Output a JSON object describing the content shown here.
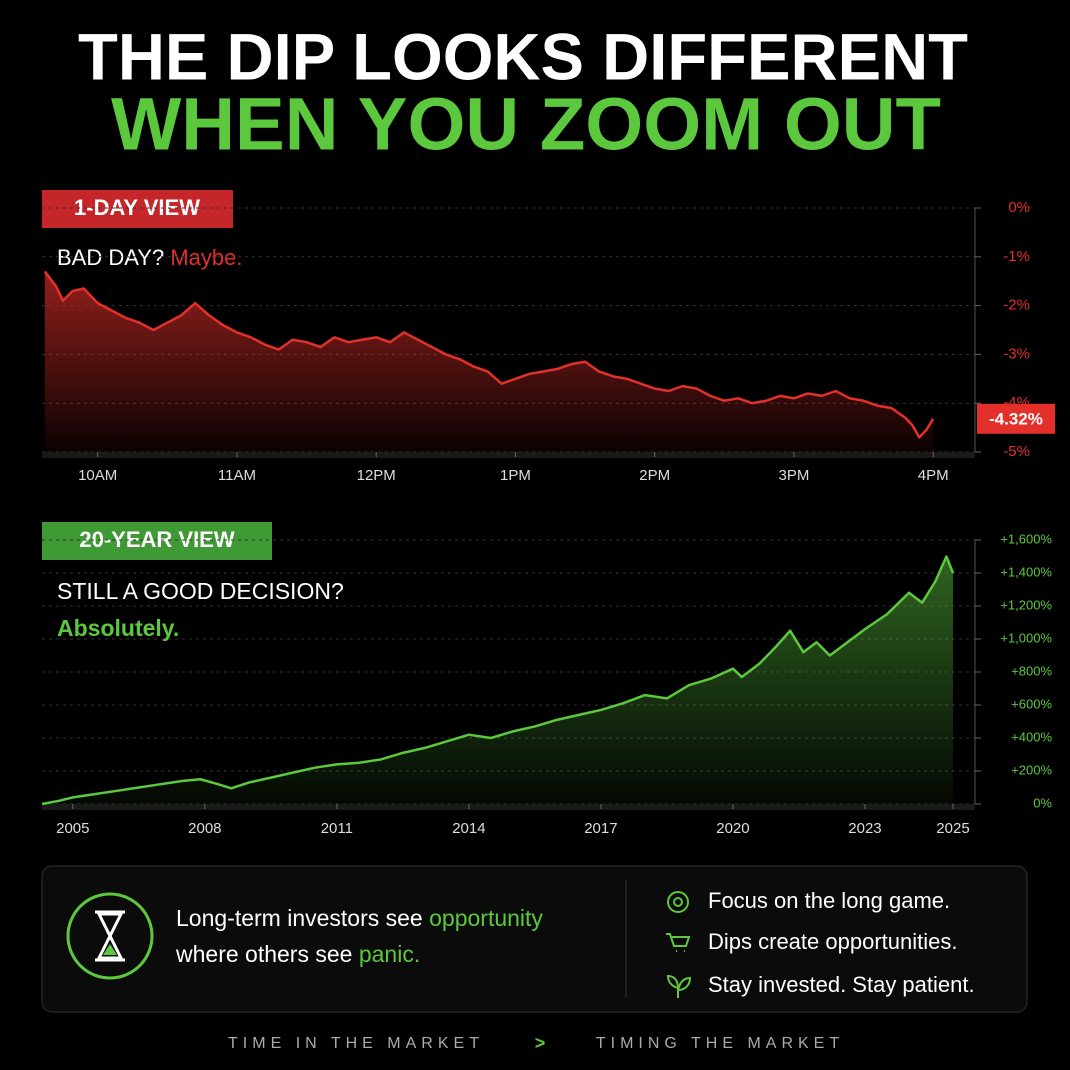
{
  "header": {
    "line1": "THE DIP LOOKS DIFFERENT",
    "line2": "WHEN YOU ZOOM OUT"
  },
  "chart_data": [
    {
      "type": "line",
      "tag": "1-DAY VIEW",
      "title": "BAD DAY?",
      "subtitle": "Maybe.",
      "x": [
        9.62,
        9.7,
        9.75,
        9.82,
        9.9,
        10.0,
        10.1,
        10.2,
        10.3,
        10.4,
        10.5,
        10.6,
        10.7,
        10.8,
        10.9,
        11.0,
        11.1,
        11.2,
        11.3,
        11.4,
        11.5,
        11.6,
        11.7,
        11.8,
        11.9,
        12.0,
        12.1,
        12.2,
        12.3,
        12.4,
        12.5,
        12.6,
        12.7,
        12.8,
        12.9,
        13.0,
        13.1,
        13.2,
        13.3,
        13.4,
        13.5,
        13.6,
        13.7,
        13.8,
        13.9,
        14.0,
        14.1,
        14.2,
        14.3,
        14.4,
        14.5,
        14.6,
        14.7,
        14.8,
        14.9,
        15.0,
        15.1,
        15.2,
        15.3,
        15.4,
        15.5,
        15.6,
        15.7,
        15.8,
        15.85,
        15.9,
        15.95,
        16.0
      ],
      "series": [
        {
          "color": "#e3302b",
          "values": [
            -1.3,
            -1.6,
            -1.9,
            -1.7,
            -1.65,
            -1.95,
            -2.1,
            -2.25,
            -2.35,
            -2.5,
            -2.35,
            -2.2,
            -1.95,
            -2.2,
            -2.4,
            -2.55,
            -2.65,
            -2.8,
            -2.9,
            -2.7,
            -2.75,
            -2.85,
            -2.65,
            -2.75,
            -2.7,
            -2.65,
            -2.75,
            -2.55,
            -2.7,
            -2.85,
            -3.0,
            -3.1,
            -3.25,
            -3.35,
            -3.6,
            -3.5,
            -3.4,
            -3.35,
            -3.3,
            -3.2,
            -3.15,
            -3.35,
            -3.45,
            -3.5,
            -3.6,
            -3.7,
            -3.75,
            -3.65,
            -3.7,
            -3.85,
            -3.95,
            -3.9,
            -4.0,
            -3.95,
            -3.85,
            -3.9,
            -3.8,
            -3.85,
            -3.75,
            -3.9,
            -3.95,
            -4.05,
            -4.1,
            -4.3,
            -4.45,
            -4.7,
            -4.55,
            -4.32
          ]
        }
      ],
      "xlim": [
        9.6,
        16.3
      ],
      "xticks": [
        {
          "value": 10,
          "label": "10AM"
        },
        {
          "value": 11,
          "label": "11AM"
        },
        {
          "value": 12,
          "label": "12PM"
        },
        {
          "value": 13,
          "label": "1PM"
        },
        {
          "value": 14,
          "label": "2PM"
        },
        {
          "value": 15,
          "label": "3PM"
        },
        {
          "value": 16,
          "label": "4PM"
        }
      ],
      "ylim": [
        -5,
        0
      ],
      "yticks": [
        {
          "value": 0,
          "label": "0%"
        },
        {
          "value": -1,
          "label": "-1%"
        },
        {
          "value": -2,
          "label": "-2%"
        },
        {
          "value": -3,
          "label": "-3%"
        },
        {
          "value": -4,
          "label": "-4%"
        },
        {
          "value": -5,
          "label": "-5%"
        }
      ],
      "annotation": "-4.32%",
      "grid": true
    },
    {
      "type": "line",
      "tag": "20-YEAR VIEW",
      "title": "STILL A GOOD DECISION?",
      "subtitle": "Absolutely.",
      "x": [
        2004.3,
        2004.7,
        2005,
        2005.5,
        2006,
        2006.5,
        2007,
        2007.5,
        2007.9,
        2008.3,
        2008.6,
        2009,
        2009.5,
        2010,
        2010.5,
        2011,
        2011.5,
        2012,
        2012.5,
        2013,
        2013.5,
        2014,
        2014.5,
        2015,
        2015.5,
        2016,
        2016.5,
        2017,
        2017.5,
        2018,
        2018.5,
        2019,
        2019.5,
        2020,
        2020.2,
        2020.6,
        2021,
        2021.3,
        2021.6,
        2021.9,
        2022.2,
        2022.5,
        2023,
        2023.5,
        2024,
        2024.3,
        2024.6,
        2024.85,
        2025
      ],
      "series": [
        {
          "color": "#5cc83e",
          "values": [
            0,
            20,
            40,
            60,
            80,
            100,
            120,
            140,
            150,
            120,
            95,
            130,
            160,
            190,
            220,
            240,
            250,
            270,
            310,
            340,
            380,
            420,
            400,
            440,
            470,
            510,
            540,
            570,
            610,
            660,
            640,
            720,
            760,
            820,
            770,
            850,
            960,
            1050,
            920,
            980,
            900,
            960,
            1060,
            1150,
            1280,
            1220,
            1350,
            1500,
            1400
          ]
        }
      ],
      "xlim": [
        2004.3,
        2025.5
      ],
      "xticks": [
        2005,
        2008,
        2011,
        2014,
        2017,
        2020,
        2023,
        2025
      ],
      "ylim": [
        0,
        1600
      ],
      "yticks": [
        {
          "value": 0,
          "label": "0%"
        },
        {
          "value": 200,
          "label": "+200%"
        },
        {
          "value": 400,
          "label": "+400%"
        },
        {
          "value": 600,
          "label": "+600%"
        },
        {
          "value": 800,
          "label": "+800%"
        },
        {
          "value": 1000,
          "label": "+1,000%"
        },
        {
          "value": 1200,
          "label": "+1,200%"
        },
        {
          "value": 1400,
          "label": "+1,400%"
        },
        {
          "value": 1600,
          "label": "+1,600%"
        }
      ],
      "grid": true
    }
  ],
  "panel": {
    "message": [
      "Long-term investors see ",
      "opportunity",
      "where others see ",
      "panic."
    ],
    "bullets": [
      "Focus on the long game.",
      "Dips create opportunities.",
      "Stay invested. Stay patient."
    ]
  },
  "footer": {
    "left": "TIME IN THE MARKET",
    "sep": ">",
    "right": "TIMING THE MARKET"
  }
}
